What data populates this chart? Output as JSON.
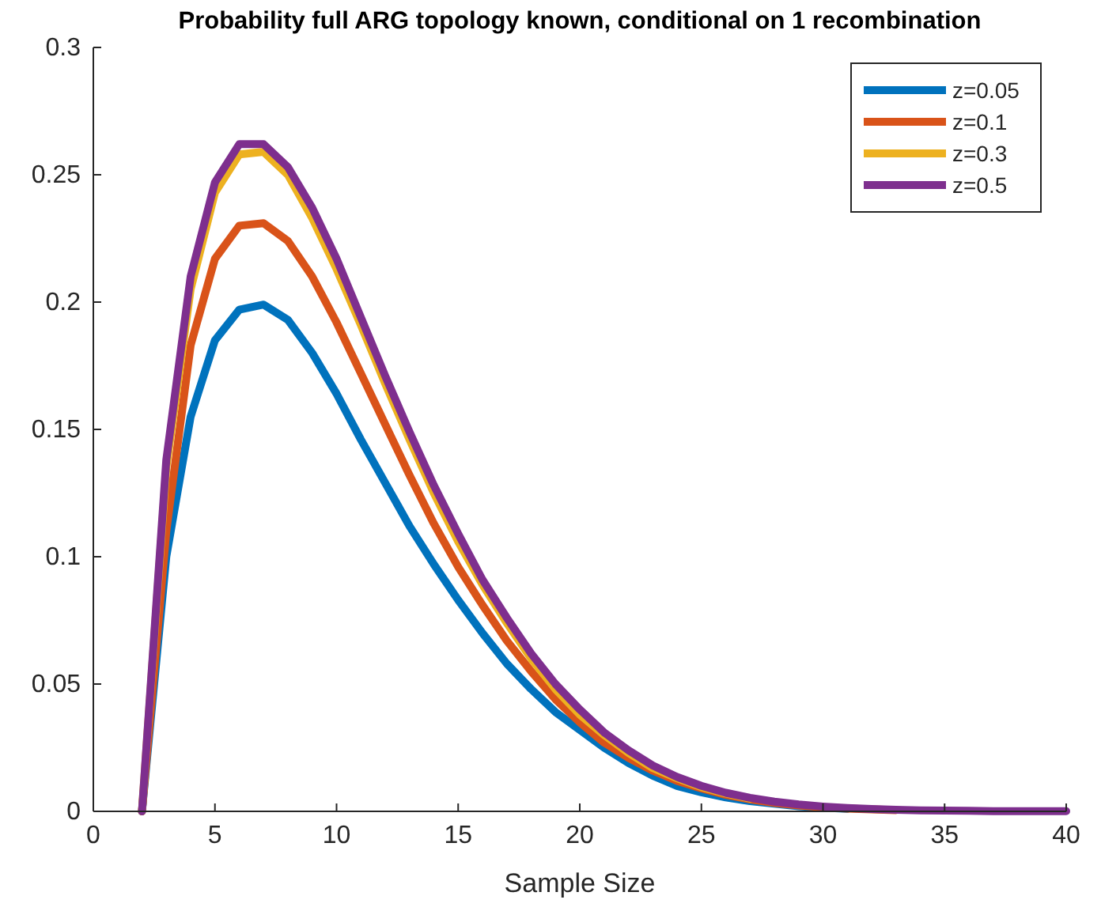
{
  "chart_data": {
    "type": "line",
    "title": "Probability full ARG topology known, conditional on 1 recombination",
    "xlabel": "Sample Size",
    "x": [
      2,
      3,
      4,
      5,
      6,
      7,
      8,
      9,
      10,
      11,
      12,
      13,
      14,
      15,
      16,
      17,
      18,
      19,
      20,
      21,
      22,
      23,
      24,
      25,
      26,
      27,
      28,
      29,
      30,
      31,
      32,
      33,
      34,
      35,
      36,
      37,
      38,
      39,
      40
    ],
    "series": [
      {
        "name": "z=0.05",
        "color": "#0072bd",
        "values": [
          0,
          0.1,
          0.155,
          0.185,
          0.197,
          0.199,
          0.193,
          0.18,
          0.164,
          0.146,
          0.129,
          0.112,
          0.097,
          0.083,
          0.07,
          0.058,
          0.048,
          0.039,
          0.032,
          0.025,
          0.019,
          0.014,
          0.01,
          0.0075,
          0.0055,
          0.004,
          0.003,
          0.002,
          0.0015,
          0.001,
          null,
          null,
          null,
          null,
          null,
          null,
          null,
          null,
          null
        ]
      },
      {
        "name": "z=0.1",
        "color": "#d95319",
        "values": [
          0,
          0.11,
          0.183,
          0.217,
          0.23,
          0.231,
          0.224,
          0.21,
          0.192,
          0.172,
          0.152,
          0.132,
          0.113,
          0.096,
          0.081,
          0.067,
          0.055,
          0.044,
          0.035,
          0.027,
          0.021,
          0.016,
          0.012,
          0.009,
          0.0065,
          0.0047,
          0.0033,
          0.0023,
          0.0016,
          0.0011,
          0.0008,
          0.0005,
          null,
          null,
          null,
          null,
          null,
          null,
          null
        ]
      },
      {
        "name": "z=0.3",
        "color": "#edb120",
        "values": [
          0,
          0.135,
          0.205,
          0.243,
          0.258,
          0.259,
          0.25,
          0.233,
          0.213,
          0.191,
          0.168,
          0.146,
          0.125,
          0.106,
          0.089,
          0.074,
          0.06,
          0.048,
          0.038,
          0.03,
          0.023,
          0.017,
          0.013,
          0.0095,
          0.007,
          0.005,
          null,
          null,
          null,
          null,
          null,
          null,
          null,
          null,
          null,
          null,
          null,
          null,
          null
        ]
      },
      {
        "name": "z=0.5",
        "color": "#7e2f8e",
        "values": [
          0,
          0.138,
          0.21,
          0.247,
          0.262,
          0.262,
          0.253,
          0.237,
          0.217,
          0.194,
          0.171,
          0.149,
          0.128,
          0.109,
          0.091,
          0.076,
          0.062,
          0.05,
          0.04,
          0.031,
          0.024,
          0.018,
          0.0135,
          0.01,
          0.0073,
          0.0053,
          0.0038,
          0.0027,
          0.0019,
          0.0013,
          0.0009,
          0.0006,
          0.0004,
          0.0003,
          0.0002,
          0.0001,
          0.0001,
          0.0001,
          0.0001
        ]
      }
    ],
    "xlim": [
      0,
      40
    ],
    "xticks": [
      0,
      5,
      10,
      15,
      20,
      25,
      30,
      35,
      40
    ],
    "ylim": [
      0,
      0.3
    ],
    "yticks": [
      0,
      0.05,
      0.1,
      0.15,
      0.2,
      0.25,
      0.3
    ],
    "legend": "top right",
    "grid": false
  }
}
